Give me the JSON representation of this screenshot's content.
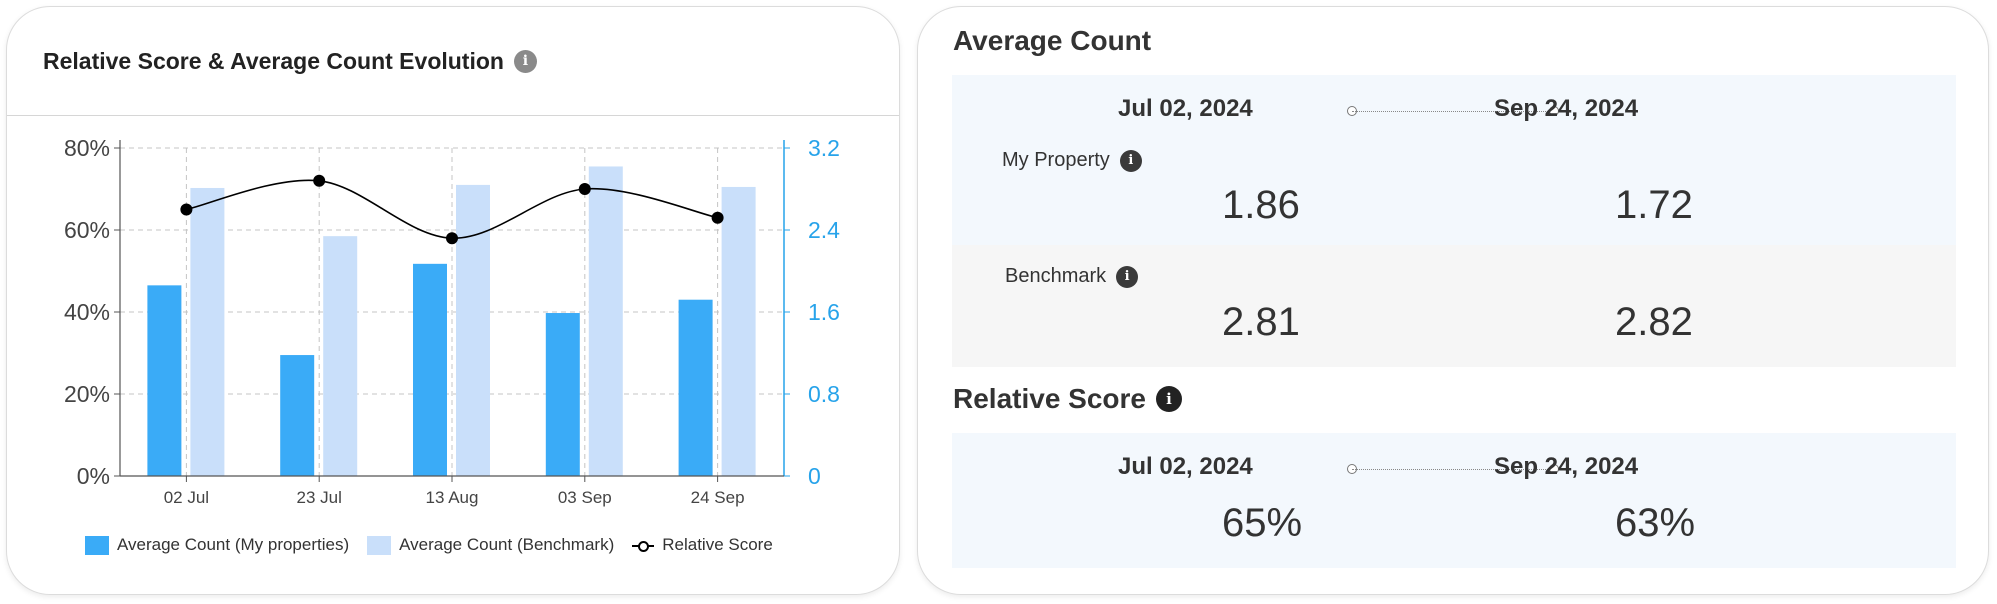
{
  "left_card": {
    "title": "Relative Score & Average Count Evolution",
    "info_glyph": "i"
  },
  "chart_data": {
    "type": "bar",
    "categories": [
      "02 Jul",
      "23 Jul",
      "13 Aug",
      "03 Sep",
      "24 Sep"
    ],
    "series": [
      {
        "name": "Average Count (My properties)",
        "type": "bar",
        "axis": "right",
        "color": "#3aabf7",
        "values": [
          1.86,
          1.18,
          2.07,
          1.59,
          1.72
        ]
      },
      {
        "name": "Average Count (Benchmark)",
        "type": "bar",
        "axis": "right",
        "color": "#c9dffa",
        "values": [
          2.81,
          2.34,
          2.84,
          3.02,
          2.82
        ]
      },
      {
        "name": "Relative Score",
        "type": "line",
        "axis": "left",
        "color": "#000000",
        "values": [
          65,
          72,
          58,
          70,
          63
        ]
      }
    ],
    "left_axis": {
      "ticks": [
        "0%",
        "20%",
        "40%",
        "60%",
        "80%"
      ],
      "min": 0,
      "max": 80
    },
    "right_axis": {
      "ticks": [
        "0",
        "0.8",
        "1.6",
        "2.4",
        "3.2"
      ],
      "min": 0,
      "max": 3.2,
      "color": "#27a3ea"
    },
    "grid": true,
    "legend": "bottom"
  },
  "average_count": {
    "title": "Average Count",
    "date_start": "Jul 02, 2024",
    "date_end": "Sep 24, 2024",
    "my_property": {
      "label": "My Property",
      "start": "1.86",
      "end": "1.72"
    },
    "benchmark": {
      "label": "Benchmark",
      "start": "2.81",
      "end": "2.82"
    }
  },
  "relative_score": {
    "title": "Relative Score",
    "date_start": "Jul 02, 2024",
    "date_end": "Sep 24, 2024",
    "start": "65%",
    "end": "63%"
  }
}
